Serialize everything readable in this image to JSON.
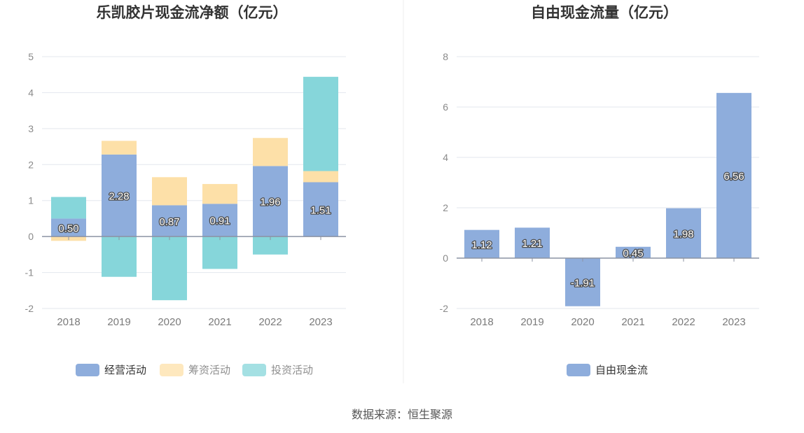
{
  "source_text": "数据来源：恒生聚源",
  "chart_data": [
    {
      "type": "bar",
      "stacked": true,
      "title": "乐凯胶片现金流净额（亿元）",
      "categories": [
        "2018",
        "2019",
        "2020",
        "2021",
        "2022",
        "2023"
      ],
      "ylim": [
        -2,
        5
      ],
      "yticks": [
        "-2",
        "-1",
        "0",
        "1",
        "2",
        "3",
        "4",
        "5"
      ],
      "grid": true,
      "legend_position": "bottom",
      "series": [
        {
          "name": "经营活动",
          "color": "#8eaddc",
          "values": [
            0.5,
            2.28,
            0.87,
            0.91,
            1.96,
            1.51
          ],
          "labels": [
            "0.50",
            "2.28",
            "0.87",
            "0.91",
            "1.96",
            "1.51"
          ]
        },
        {
          "name": "筹资活动",
          "color": "#fde0a8",
          "values": [
            -0.12,
            0.38,
            0.78,
            0.55,
            0.78,
            0.31
          ]
        },
        {
          "name": "投资活动",
          "color": "#86d6da",
          "values": [
            0.6,
            -1.12,
            -1.77,
            -0.9,
            -0.5,
            2.62
          ]
        }
      ]
    },
    {
      "type": "bar",
      "title": "自由现金流量（亿元）",
      "categories": [
        "2018",
        "2019",
        "2020",
        "2021",
        "2022",
        "2023"
      ],
      "ylim": [
        -2,
        8
      ],
      "yticks": [
        "-2",
        "0",
        "2",
        "4",
        "6",
        "8"
      ],
      "grid": true,
      "legend_position": "bottom",
      "series": [
        {
          "name": "自由现金流",
          "color": "#8eaddc",
          "values": [
            1.12,
            1.21,
            -1.91,
            0.45,
            1.98,
            6.56
          ],
          "labels": [
            "1.12",
            "1.21",
            "-1.91",
            "0.45",
            "1.98",
            "6.56"
          ]
        }
      ]
    }
  ]
}
